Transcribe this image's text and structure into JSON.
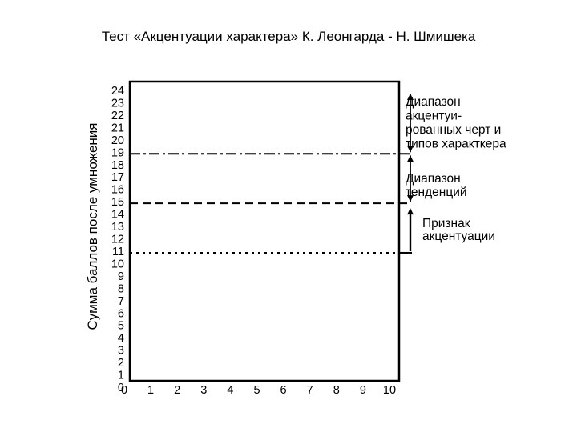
{
  "slide": {
    "title": "Тест «Акцентуации характера» К. Леонгарда - Н. Шмишека"
  },
  "chart_data": {
    "type": "line",
    "title": "",
    "xlabel": "",
    "ylabel": "Сумма баллов после умножения",
    "xlim": [
      0,
      10
    ],
    "ylim": [
      0,
      24
    ],
    "x_ticks": [
      "0",
      "1",
      "2",
      "3",
      "4",
      "5",
      "6",
      "7",
      "8",
      "9",
      "10"
    ],
    "y_ticks": [
      "0",
      "1",
      "2",
      "3",
      "4",
      "5",
      "6",
      "7",
      "8",
      "9",
      "10",
      "11",
      "12",
      "13",
      "14",
      "15",
      "16",
      "17",
      "18",
      "19",
      "20",
      "21",
      "22",
      "23",
      "24"
    ],
    "grid": false,
    "thresholds": [
      {
        "name": "dash-dot",
        "y": 19,
        "style": "dashdot"
      },
      {
        "name": "dashed",
        "y": 15,
        "style": "dashed"
      },
      {
        "name": "dotted",
        "y": 11,
        "style": "dotted"
      }
    ],
    "ranges": [
      {
        "from": 19,
        "to": 24,
        "lines": [
          "Диапазон",
          "акцентуи-",
          "рованных черт и",
          "типов характкера"
        ],
        "arrow": "both"
      },
      {
        "from": 15,
        "to": 19,
        "lines": [
          "Диапазон",
          "тенденций"
        ],
        "arrow": "both"
      },
      {
        "from": 11,
        "to": 15,
        "lines": [
          "Признак",
          "акцентуации"
        ],
        "arrow": "up"
      }
    ],
    "colors": {
      "line": "#000000",
      "background": "#ffffff"
    }
  }
}
